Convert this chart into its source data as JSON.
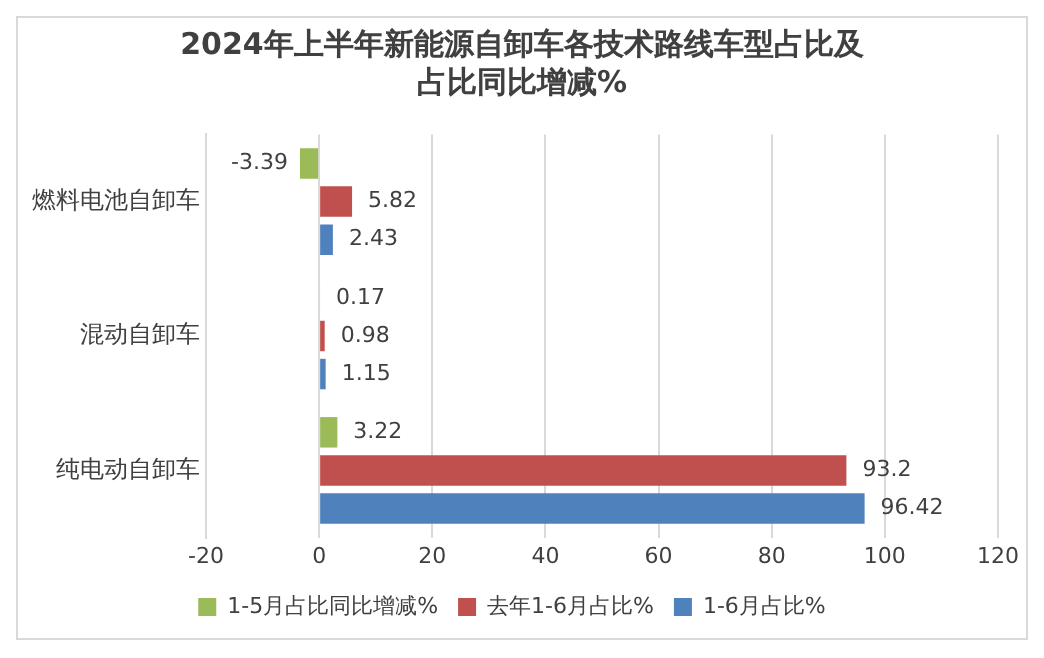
{
  "chart_data": {
    "type": "bar",
    "orientation": "horizontal",
    "title": "2024年上半年新能源自卸车各技术路线车型占比及占比同比增减%",
    "categories": [
      "燃料电池自卸车",
      "混动自卸车",
      "纯电动自卸车"
    ],
    "series": [
      {
        "name": "1-5月占比同比增减%",
        "color": "#9bbb59",
        "values": [
          -3.39,
          0.17,
          3.22
        ]
      },
      {
        "name": "去年1-6月占比%",
        "color": "#c0504d",
        "values": [
          5.82,
          0.98,
          93.2
        ]
      },
      {
        "name": "1-6月占比%",
        "color": "#4f81bd",
        "values": [
          2.43,
          1.15,
          96.42
        ]
      }
    ],
    "xlim": [
      -20,
      120
    ],
    "xticks": [
      -20,
      0,
      20,
      40,
      60,
      80,
      100,
      120
    ],
    "grid": "x",
    "legend": "bottom",
    "data_labels": true
  }
}
